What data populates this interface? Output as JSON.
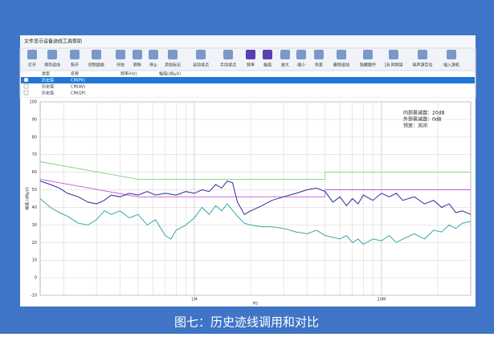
{
  "menu": [
    "文件",
    "显示",
    "设备",
    "迹线",
    "工具",
    "帮助"
  ],
  "toolbar": [
    "打开",
    "保存迹线",
    "新开",
    "控制面板",
    "开始",
    "刷新",
    "停止",
    "添加标记",
    "自动读点",
    "手动读点",
    "频率",
    "幅值",
    "放大",
    "缩小",
    "恢复",
    "删除迹线",
    "隐藏图件",
    "1B:同频谱",
    "噪声源定位",
    "插入源机"
  ],
  "table": {
    "header": [
      "类型",
      "名称",
      "频率(Hz)",
      "幅值(dBμV)"
    ],
    "rows": [
      [
        "历史值",
        "CM(PK)"
      ],
      [
        "历史值",
        "CM(AV)"
      ],
      [
        "历史值",
        "CM(QP)"
      ]
    ]
  },
  "chart_data": {
    "type": "line",
    "x_label": "Hz",
    "y_label": "幅值 (dBμV)",
    "annotations": [
      "内部衰减器：20dB",
      "外部衰减器：0dB",
      "预放：关闭"
    ],
    "xlim": [
      150000,
      30000000
    ],
    "log_x": true,
    "xticks": [
      {
        "value": 1000000,
        "label": "1M"
      },
      {
        "value": 10000000,
        "label": "10M"
      }
    ],
    "xgrid": [
      200000,
      300000,
      400000,
      500000,
      600000,
      700000,
      800000,
      900000,
      2000000,
      3000000,
      4000000,
      5000000,
      6000000,
      7000000,
      8000000,
      9000000,
      20000000
    ],
    "ylim": [
      -10,
      100
    ],
    "yticks": [
      -10,
      0,
      10,
      20,
      30,
      40,
      50,
      60,
      70,
      80,
      90,
      100
    ],
    "grid": true,
    "series": [
      {
        "color": "#7fd27f",
        "x": [
          150000,
          500000,
          5000000,
          5000000,
          30000000
        ],
        "values": [
          66,
          56,
          56,
          60,
          60
        ]
      },
      {
        "color": "#c058d8",
        "x": [
          150000,
          500000,
          5000000,
          5000000,
          30000000
        ],
        "values": [
          56,
          46,
          46,
          50,
          50
        ]
      },
      {
        "color": "#2a2a9a",
        "x": [
          150000,
          170000,
          190000,
          210000,
          240000,
          270000,
          300000,
          330000,
          360000,
          400000,
          450000,
          500000,
          560000,
          620000,
          700000,
          800000,
          900000,
          1000000,
          1100000,
          1200000,
          1300000,
          1400000,
          1500000,
          1600000,
          1700000,
          1850000,
          2000000,
          2300000,
          2600000,
          3000000,
          3500000,
          4000000,
          4500000,
          5000000,
          5500000,
          6000000,
          6500000,
          7000000,
          7500000,
          8000000,
          9000000,
          10000000,
          11000000,
          12000000,
          13000000,
          15000000,
          17000000,
          19000000,
          21000000,
          23000000,
          25000000,
          27000000,
          30000000
        ],
        "values": [
          55,
          53,
          51,
          48,
          46,
          43,
          42,
          44,
          47,
          46,
          48,
          47,
          49,
          47,
          48,
          47,
          49,
          48,
          50,
          49,
          53,
          51,
          55,
          54,
          43,
          36,
          38,
          41,
          44,
          46,
          48,
          50,
          51,
          49,
          43,
          46,
          41,
          45,
          42,
          47,
          44,
          48,
          46,
          48,
          44,
          46,
          42,
          44,
          40,
          42,
          37,
          38,
          36
        ]
      },
      {
        "color": "#3aa6a6",
        "x": [
          150000,
          170000,
          190000,
          210000,
          240000,
          270000,
          300000,
          330000,
          360000,
          400000,
          450000,
          500000,
          560000,
          620000,
          700000,
          750000,
          800000,
          900000,
          1000000,
          1100000,
          1200000,
          1300000,
          1400000,
          1500000,
          1700000,
          1850000,
          2000000,
          2300000,
          2600000,
          3000000,
          3500000,
          4000000,
          4500000,
          5000000,
          5500000,
          6000000,
          6500000,
          7000000,
          7500000,
          8000000,
          9000000,
          10000000,
          11000000,
          12000000,
          13000000,
          15000000,
          17000000,
          19000000,
          21000000,
          23000000,
          25000000,
          27000000,
          30000000
        ],
        "values": [
          45,
          40,
          37,
          35,
          31,
          30,
          33,
          38,
          36,
          38,
          34,
          36,
          30,
          33,
          24,
          22,
          27,
          30,
          34,
          40,
          36,
          41,
          38,
          42,
          35,
          31,
          30,
          29,
          29,
          28,
          26,
          25,
          27,
          24,
          23,
          22,
          24,
          20,
          22,
          19,
          22,
          21,
          24,
          20,
          22,
          25,
          22,
          27,
          26,
          30,
          28,
          31,
          32
        ]
      }
    ]
  },
  "caption": "图七：历史迹线调用和对比"
}
